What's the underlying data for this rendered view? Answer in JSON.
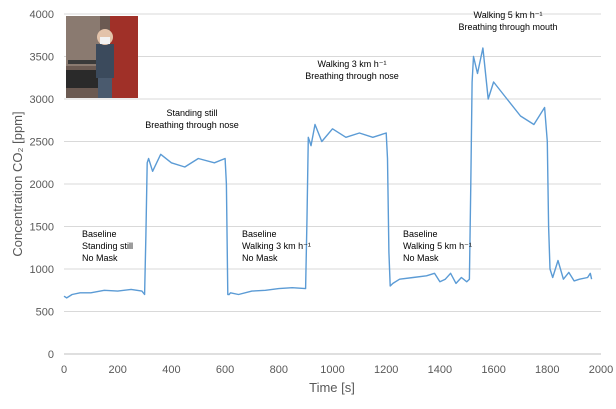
{
  "chart_data": {
    "type": "line",
    "title": "",
    "xlabel": "Time [s]",
    "ylabel": "Concentration CO₂ [ppm]",
    "xlim": [
      0,
      2000
    ],
    "ylim": [
      0,
      4000
    ],
    "x_ticks": [
      "0",
      "200",
      "400",
      "600",
      "800",
      "1000",
      "1200",
      "1400",
      "1600",
      "1800",
      "2000"
    ],
    "y_ticks": [
      "0",
      "500",
      "1000",
      "1500",
      "2000",
      "2500",
      "3000",
      "3500",
      "4000"
    ],
    "grid": "horizontal",
    "line_color": "#5b9bd5",
    "photo_inset": "person wearing mask on treadmill",
    "series": [
      {
        "x": [
          0,
          10,
          30,
          60,
          100,
          150,
          200,
          250,
          290,
          300,
          305,
          310,
          315,
          330,
          360,
          400,
          450,
          500,
          560,
          600,
          605,
          610,
          615,
          620,
          650,
          700,
          750,
          800,
          850,
          900,
          905,
          910,
          915,
          920,
          935,
          960,
          1000,
          1050,
          1100,
          1150,
          1200,
          1205,
          1210,
          1215,
          1225,
          1250,
          1300,
          1350,
          1380,
          1400,
          1420,
          1440,
          1460,
          1480,
          1500,
          1510,
          1515,
          1520,
          1525,
          1540,
          1560,
          1580,
          1600,
          1650,
          1700,
          1750,
          1790,
          1800,
          1805,
          1810,
          1820,
          1840,
          1860,
          1880,
          1900,
          1920,
          1950,
          1960,
          1965
        ],
        "y": [
          680,
          660,
          700,
          720,
          720,
          750,
          740,
          760,
          740,
          700,
          1400,
          2250,
          2300,
          2150,
          2350,
          2250,
          2200,
          2300,
          2250,
          2300,
          2000,
          700,
          700,
          720,
          700,
          740,
          750,
          770,
          780,
          770,
          1600,
          2550,
          2500,
          2450,
          2700,
          2500,
          2650,
          2550,
          2600,
          2550,
          2600,
          2300,
          1200,
          800,
          830,
          880,
          900,
          920,
          950,
          850,
          880,
          950,
          830,
          900,
          850,
          880,
          2000,
          3200,
          3500,
          3300,
          3600,
          3000,
          3200,
          3000,
          2800,
          2700,
          2900,
          2500,
          1500,
          1000,
          900,
          1100,
          880,
          960,
          860,
          880,
          900,
          950,
          880
        ]
      }
    ],
    "annotations": [
      {
        "lines": [
          "Baseline",
          "Standing still",
          "No Mask"
        ]
      },
      {
        "lines": [
          "Standing still",
          "Breathing through nose"
        ]
      },
      {
        "lines": [
          "Baseline",
          "Walking 3 km h⁻¹",
          "No Mask"
        ]
      },
      {
        "lines": [
          "Walking 3 km h⁻¹",
          "Breathing through nose"
        ]
      },
      {
        "lines": [
          "Baseline",
          "Walking 5 km h⁻¹",
          "No Mask"
        ]
      },
      {
        "lines": [
          "Walking 5 km h⁻¹",
          "Breathing through mouth"
        ]
      }
    ]
  }
}
